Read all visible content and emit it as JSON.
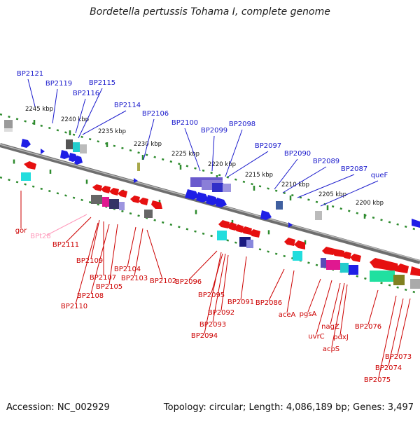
{
  "title": "Bordetella pertussis Tohama I, complete genome",
  "accession": "Accession: NC_002929",
  "summary": "Topology: circular; Length: 4,086,189 bp; Genes: 3,497",
  "colors": {
    "backbone": "#8c8c8c",
    "tick": "#2e8b2e",
    "forward_label": "#1a1acc",
    "reverse_label": "#cc0000",
    "pseudo_label": "#ff99bb"
  },
  "scale_labels": [
    "2245 kbp",
    "2240 kbp",
    "2235 kbp",
    "2230 kbp",
    "2225 kbp",
    "2220 kbp",
    "2215 kbp",
    "2210 kbp",
    "2205 kbp",
    "2200 kbp"
  ],
  "forward_genes": [
    "BP2121",
    "BP2119",
    "BP2116",
    "BP2115",
    "BP2114",
    "BP2106",
    "BP2100",
    "BP2099",
    "BP2098",
    "BP2097",
    "BP2090",
    "BP2089",
    "BP2087",
    "queF"
  ],
  "reverse_genes": [
    "gor",
    "BPt28",
    "BP2111",
    "BP2109",
    "BP2107",
    "BP2108",
    "BP2110",
    "BP2105",
    "BP2104",
    "BP2103",
    "BP2102",
    "BP2096",
    "BP2095",
    "BP2092",
    "BP2093",
    "BP2094",
    "BP2091",
    "BP2086",
    "aceA",
    "pgsA",
    "uvrC",
    "nagZ",
    "pdxJ",
    "acpS",
    "BP2076",
    "BP2073",
    "BP2074",
    "BP2075"
  ]
}
